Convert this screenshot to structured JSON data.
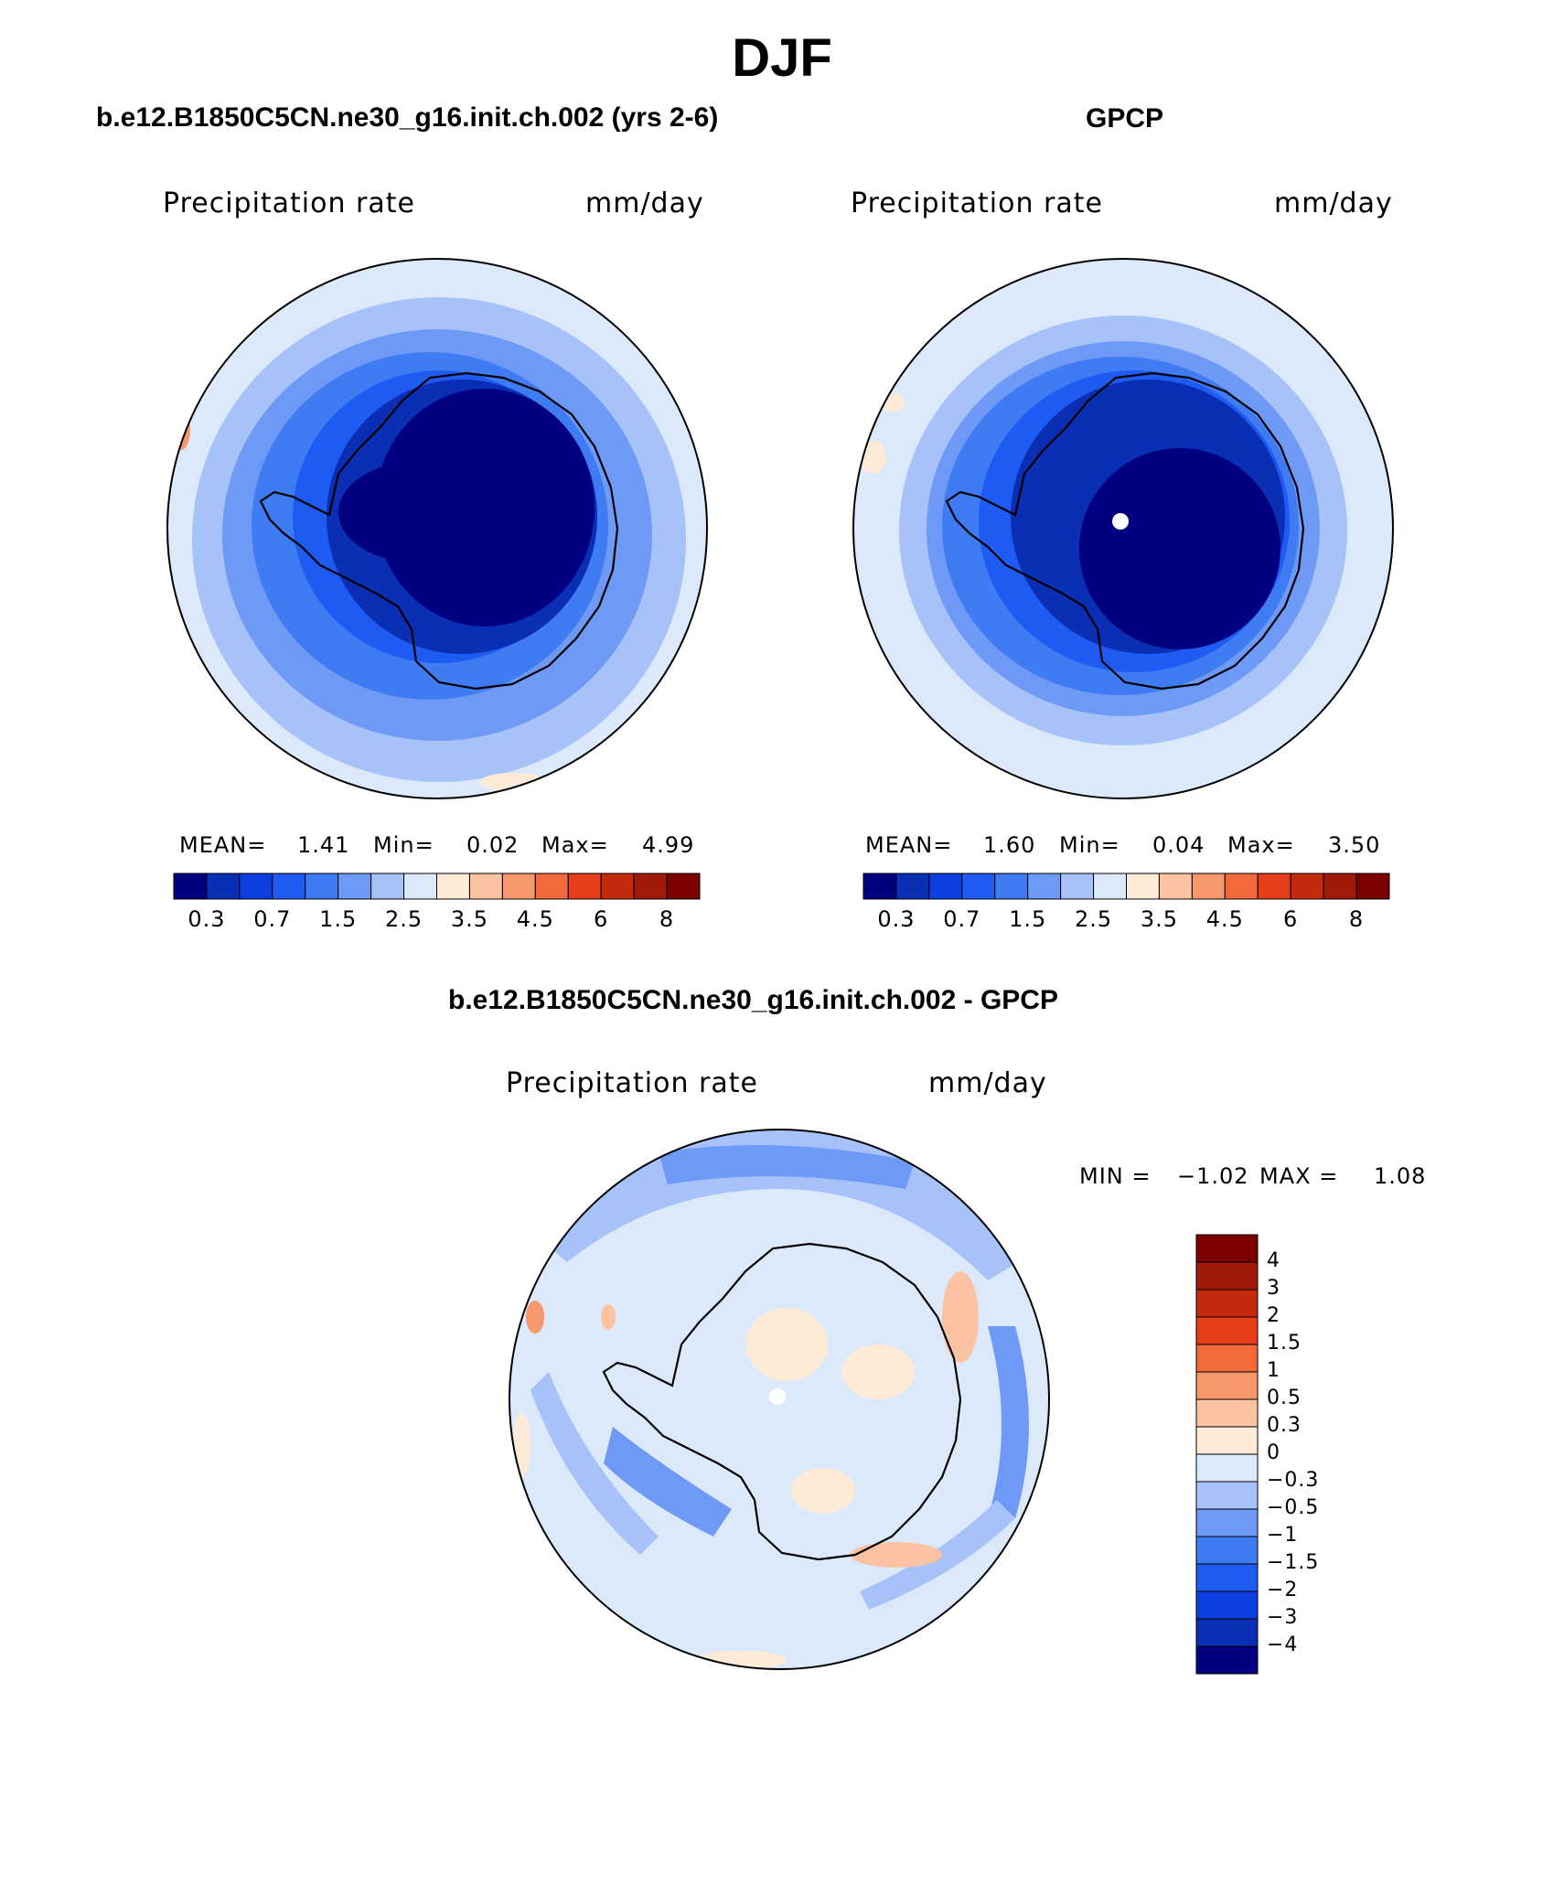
{
  "figure": {
    "title": "DJF"
  },
  "colors": {
    "abs_scale": [
      "#000080",
      "#0a2fb5",
      "#0c3ee0",
      "#1d5bf2",
      "#3f7bf3",
      "#6f99f6",
      "#a7c2f8",
      "#dce9fb",
      "#fdebd8",
      "#fbc3a2",
      "#f7986c",
      "#f26a3b",
      "#e53e18",
      "#c42a0c",
      "#a01a07",
      "#7c0202"
    ],
    "diff_scale": [
      "#000080",
      "#0a2fb5",
      "#0c3ee0",
      "#1d5bf2",
      "#3f7bf3",
      "#6f99f6",
      "#a7c2f8",
      "#dce9fb",
      "#fdebd8",
      "#fbc3a2",
      "#f7986c",
      "#f26a3b",
      "#e53e18",
      "#c42a0c",
      "#a01a07",
      "#7c0202"
    ],
    "coast": "#000000"
  },
  "panels": [
    {
      "id": "model",
      "title": "b.e12.B1850C5CN.ne30_g16.init.ch.002 (yrs 2-6)",
      "field": "Precipitation rate",
      "units": "mm/day",
      "mean_label": "MEAN=",
      "mean": "1.41",
      "min_label": "Min=",
      "min": "0.02",
      "max_label": "Max=",
      "max": "4.99"
    },
    {
      "id": "gpcp",
      "title": "GPCP",
      "field": "Precipitation rate",
      "units": "mm/day",
      "mean_label": "MEAN=",
      "mean": "1.60",
      "min_label": "Min=",
      "min": "0.04",
      "max_label": "Max=",
      "max": "3.50"
    },
    {
      "id": "diff",
      "title": "b.e12.B1850C5CN.ne30_g16.init.ch.002 - GPCP",
      "field": "Precipitation rate",
      "units": "mm/day",
      "min_label": "MIN =",
      "min": "−1.02",
      "max_label": "MAX =",
      "max": "1.08"
    }
  ],
  "abs_colorbar_ticks": [
    "0.3",
    "0.7",
    "1.5",
    "2.5",
    "3.5",
    "4.5",
    "6",
    "8"
  ],
  "diff_colorbar_labels": [
    "4",
    "3",
    "2",
    "1.5",
    "1",
    "0.5",
    "0.3",
    "0",
    "−0.3",
    "−0.5",
    "−1",
    "−1.5",
    "−2",
    "−3",
    "−4"
  ]
}
